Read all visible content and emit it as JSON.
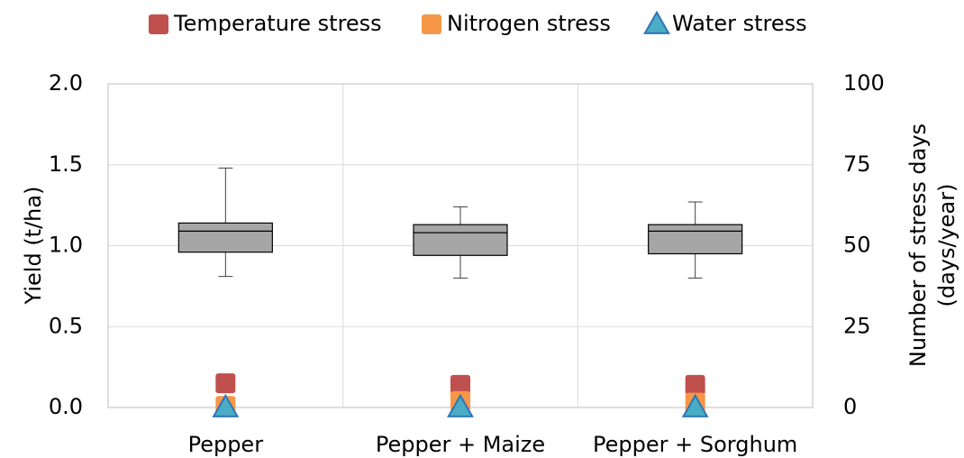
{
  "chart_data": {
    "type": "box",
    "ylabel": "Yield (t/ha)",
    "y2label": [
      "Number of stress days",
      "(days/year)"
    ],
    "categories": [
      "Pepper",
      "Pepper + Maize",
      "Pepper + Sorghum"
    ],
    "box_color": "#a6a6a6",
    "boxes": [
      {
        "whisker_low": 0.81,
        "q1": 0.96,
        "median": 1.09,
        "q3": 1.14,
        "whisker_high": 1.48
      },
      {
        "whisker_low": 0.8,
        "q1": 0.94,
        "median": 1.08,
        "q3": 1.13,
        "whisker_high": 1.24
      },
      {
        "whisker_low": 0.8,
        "q1": 0.95,
        "median": 1.09,
        "q3": 1.13,
        "whisker_high": 1.27
      }
    ],
    "series": [
      {
        "name": "Temperature stress",
        "color": "#c0504d",
        "marker": "square",
        "axis": "y2",
        "values": [
          7.5,
          7,
          7
        ]
      },
      {
        "name": "Nitrogen stress",
        "color": "#f79646",
        "marker": "square",
        "axis": "y2",
        "values": [
          0.5,
          2,
          1.5
        ]
      },
      {
        "name": "Water stress",
        "color": "#4bacc6",
        "marker": "triangle",
        "axis": "y2",
        "values": [
          0,
          0,
          0
        ]
      }
    ],
    "ylim": [
      0,
      2
    ],
    "yticks": [
      {
        "value": 0,
        "label": "0.0"
      },
      {
        "value": 0.5,
        "label": "0.5"
      },
      {
        "value": 1,
        "label": "1.0"
      },
      {
        "value": 1.5,
        "label": "1.5"
      },
      {
        "value": 2,
        "label": "2.0"
      }
    ],
    "y2lim": [
      0,
      100
    ],
    "y2ticks": [
      0,
      25,
      50,
      75,
      100
    ],
    "grid": true,
    "legend": "top"
  }
}
